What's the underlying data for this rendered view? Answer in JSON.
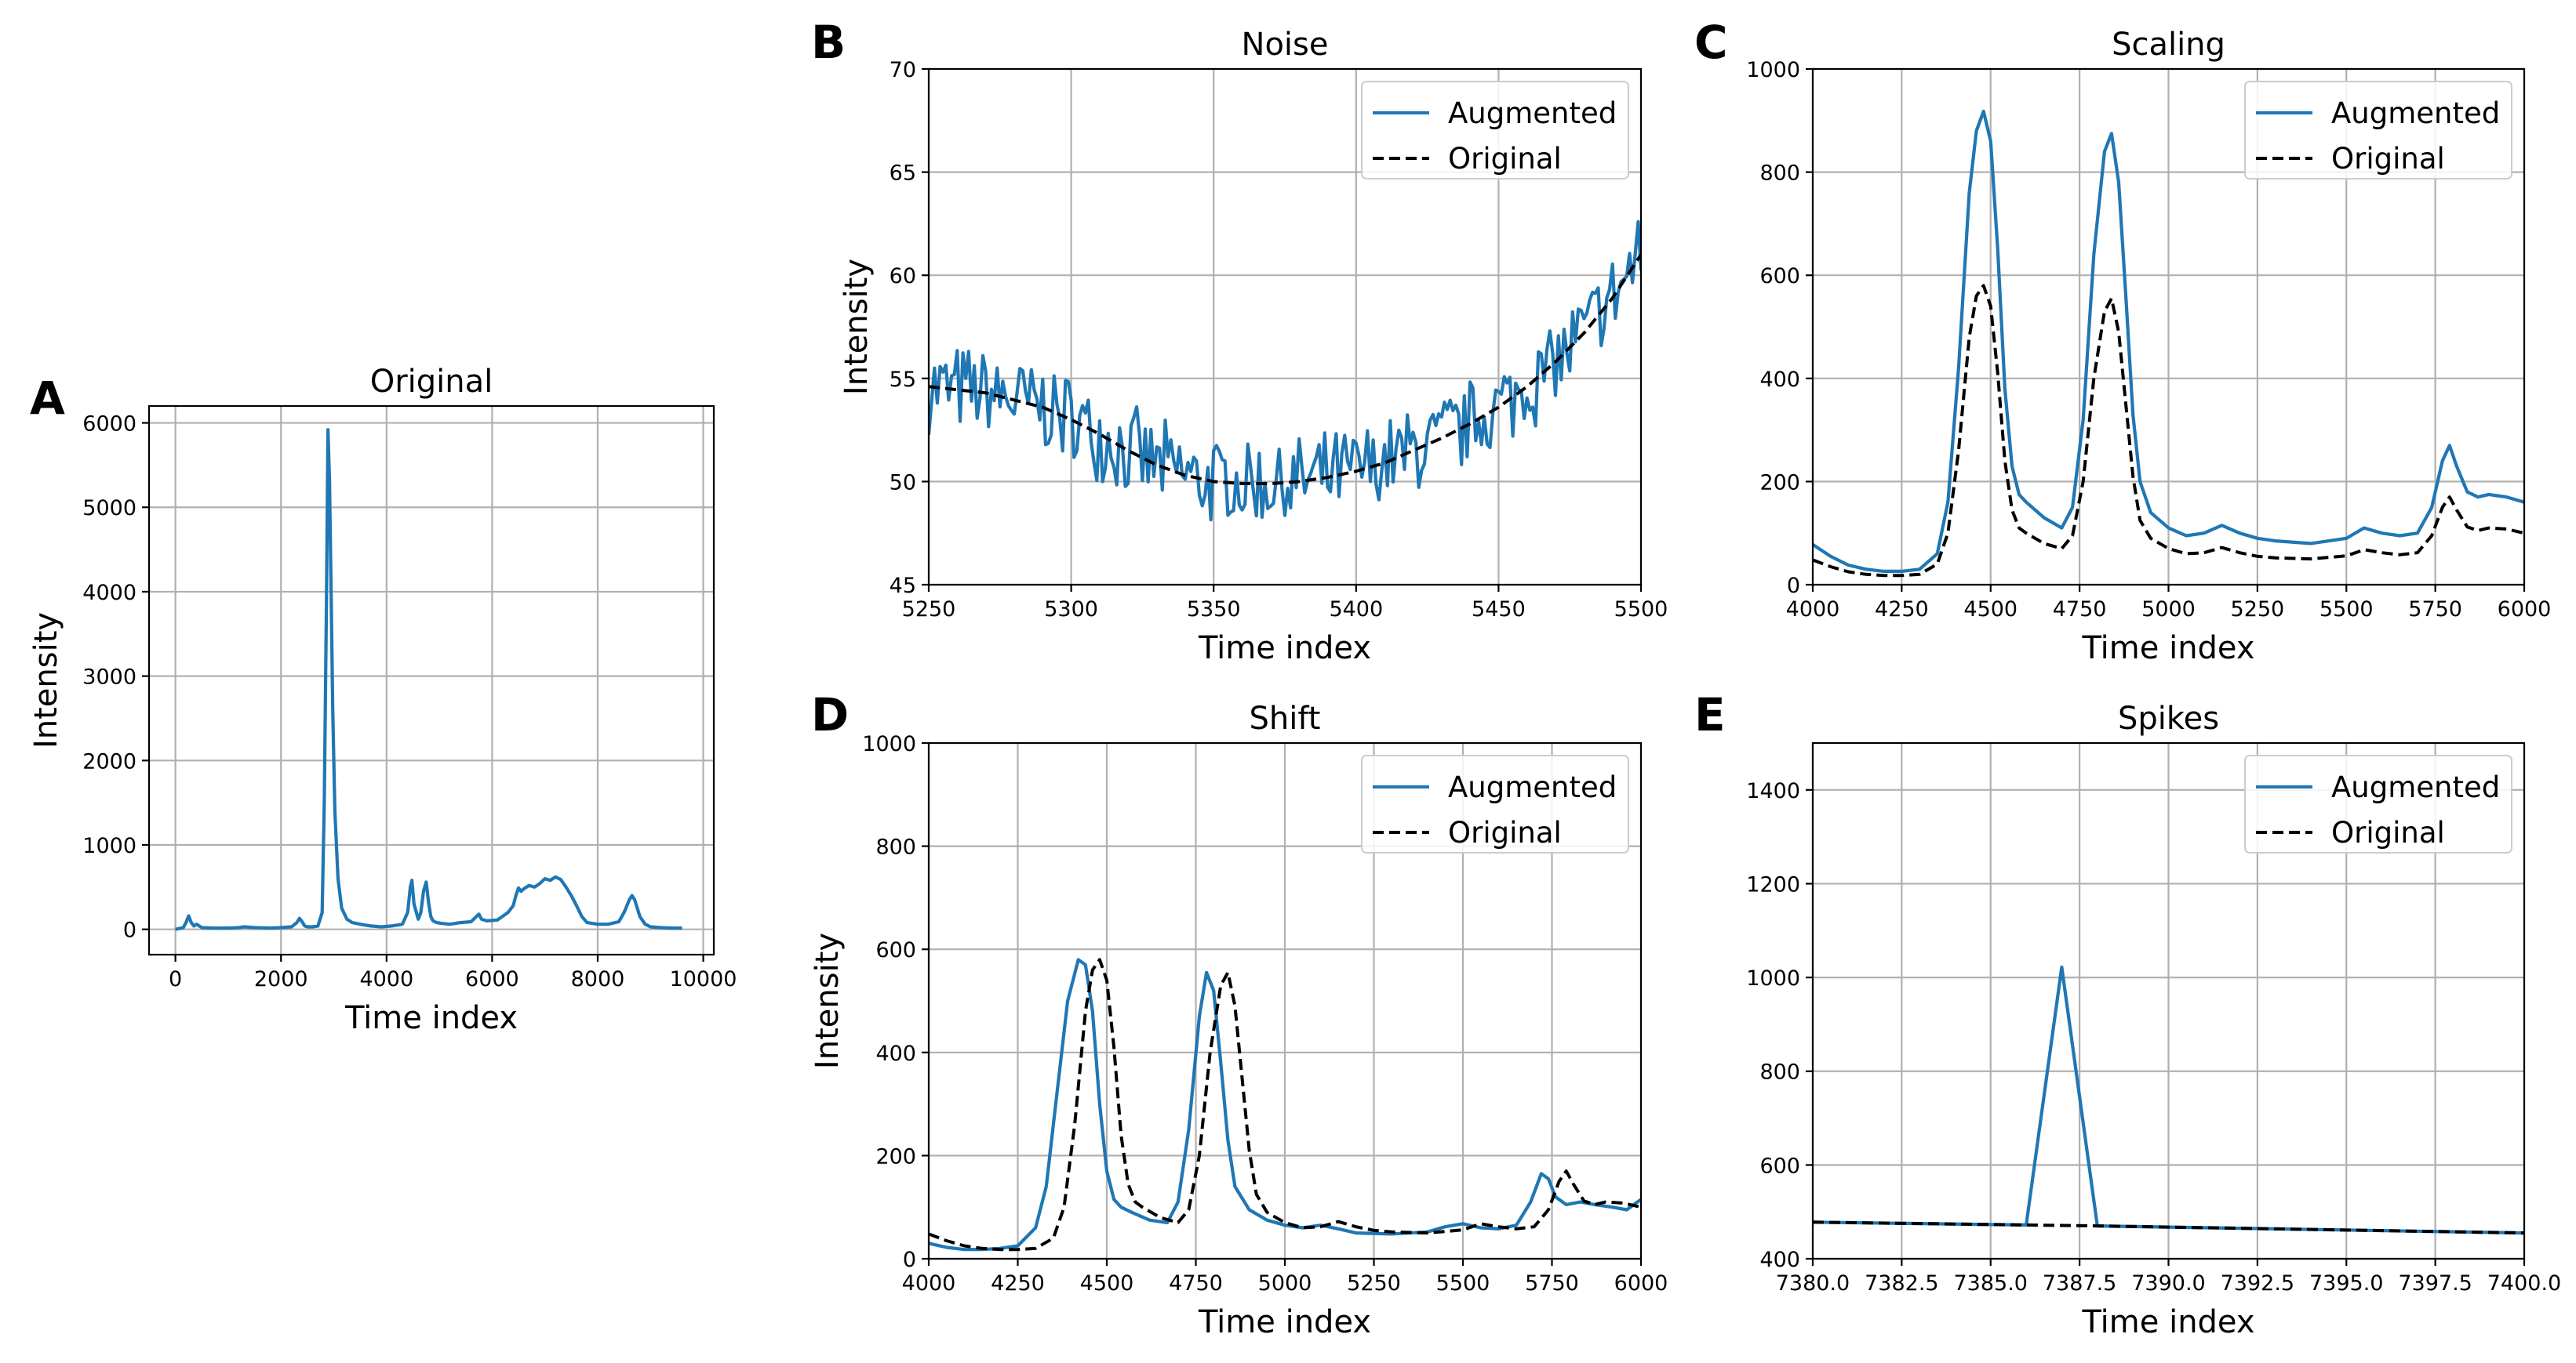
{
  "colors": {
    "augmented": "#1f77b4",
    "original": "#000000",
    "grid": "#b0b0b0"
  },
  "chart_data": [
    {
      "panel": "A",
      "type": "line",
      "title": "Original",
      "xlabel": "Time index",
      "ylabel": "Intensity",
      "xlim": [
        -500,
        10200
      ],
      "ylim": [
        -300,
        6200
      ],
      "xticks": [
        0,
        2000,
        4000,
        6000,
        8000,
        10000
      ],
      "yticks": [
        0,
        1000,
        2000,
        3000,
        4000,
        5000,
        6000
      ],
      "grid": true,
      "series": [
        {
          "style": "solid",
          "color": "#1f77b4",
          "x": [
            0,
            150,
            200,
            250,
            300,
            350,
            400,
            500,
            700,
            1000,
            1200,
            1300,
            1500,
            1800,
            2000,
            2200,
            2300,
            2350,
            2400,
            2450,
            2500,
            2600,
            2700,
            2780,
            2820,
            2860,
            2890,
            2920,
            2950,
            2980,
            3020,
            3080,
            3150,
            3250,
            3350,
            3500,
            3700,
            3900,
            4100,
            4300,
            4400,
            4450,
            4480,
            4520,
            4600,
            4650,
            4700,
            4750,
            4800,
            4840,
            4880,
            4950,
            5050,
            5200,
            5400,
            5600,
            5700,
            5750,
            5800,
            5900,
            6100,
            6300,
            6400,
            6450,
            6500,
            6550,
            6600,
            6700,
            6800,
            6900,
            7000,
            7100,
            7200,
            7300,
            7400,
            7500,
            7600,
            7700,
            7800,
            8000,
            8200,
            8400,
            8500,
            8600,
            8650,
            8700,
            8800,
            8900,
            9000,
            9200,
            9400,
            9600
          ],
          "y": [
            0,
            20,
            80,
            160,
            80,
            40,
            60,
            20,
            15,
            15,
            20,
            30,
            20,
            15,
            20,
            30,
            80,
            130,
            90,
            40,
            30,
            30,
            40,
            200,
            1500,
            3800,
            5920,
            5300,
            4000,
            2600,
            1400,
            600,
            250,
            120,
            80,
            60,
            40,
            30,
            40,
            60,
            200,
            500,
            580,
            300,
            120,
            200,
            450,
            560,
            300,
            150,
            100,
            80,
            70,
            60,
            80,
            90,
            150,
            180,
            120,
            100,
            110,
            200,
            280,
            400,
            490,
            450,
            480,
            520,
            500,
            540,
            600,
            580,
            620,
            590,
            500,
            400,
            280,
            150,
            80,
            60,
            60,
            90,
            200,
            350,
            400,
            350,
            150,
            60,
            30,
            20,
            15,
            15
          ]
        }
      ]
    },
    {
      "panel": "B",
      "type": "line",
      "title": "Noise",
      "xlabel": "Time index",
      "ylabel": "Intensity",
      "xlim": [
        5250,
        5500
      ],
      "ylim": [
        45,
        70
      ],
      "xticks": [
        5250,
        5300,
        5350,
        5400,
        5450,
        5500
      ],
      "yticks": [
        45,
        50,
        55,
        60,
        65,
        70
      ],
      "grid": true,
      "legend": {
        "position": "top-right",
        "entries": [
          "Augmented",
          "Original"
        ]
      },
      "series": [
        {
          "name": "Augmented",
          "style": "solid",
          "color": "#1f77b4",
          "values_note_len": 251
        },
        {
          "name": "Original",
          "style": "dashed",
          "color": "#000000",
          "x": [
            5250,
            5270,
            5290,
            5300,
            5310,
            5320,
            5330,
            5340,
            5350,
            5360,
            5370,
            5380,
            5390,
            5400,
            5410,
            5420,
            5430,
            5440,
            5450,
            5460,
            5470,
            5480,
            5490,
            5500
          ],
          "y": [
            54.6,
            54.3,
            53.6,
            53.0,
            52.3,
            51.5,
            50.8,
            50.3,
            50.0,
            49.9,
            49.9,
            50.0,
            50.2,
            50.5,
            50.9,
            51.5,
            52.1,
            52.8,
            53.6,
            54.6,
            55.8,
            57.2,
            58.9,
            61.0
          ]
        }
      ]
    },
    {
      "panel": "C",
      "type": "line",
      "title": "Scaling",
      "xlabel": "Time index",
      "ylabel": "",
      "xlim": [
        4000,
        6000
      ],
      "ylim": [
        0,
        1000
      ],
      "xticks": [
        4000,
        4250,
        4500,
        4750,
        5000,
        5250,
        5500,
        5750,
        6000
      ],
      "yticks": [
        0,
        200,
        400,
        600,
        800,
        1000
      ],
      "grid": true,
      "legend": {
        "position": "top-right",
        "entries": [
          "Augmented",
          "Original"
        ]
      },
      "series": [
        {
          "name": "Augmented",
          "style": "solid",
          "color": "#1f77b4",
          "x": [
            4000,
            4050,
            4100,
            4150,
            4200,
            4250,
            4300,
            4350,
            4380,
            4410,
            4440,
            4460,
            4480,
            4500,
            4520,
            4540,
            4560,
            4580,
            4600,
            4650,
            4700,
            4730,
            4760,
            4790,
            4820,
            4840,
            4860,
            4880,
            4900,
            4920,
            4950,
            5000,
            5050,
            5100,
            5150,
            5200,
            5250,
            5300,
            5400,
            5500,
            5550,
            5600,
            5650,
            5700,
            5740,
            5770,
            5790,
            5810,
            5840,
            5870,
            5900,
            5950,
            6000
          ],
          "y": [
            78,
            55,
            38,
            30,
            26,
            26,
            30,
            60,
            160,
            420,
            760,
            880,
            918,
            860,
            650,
            380,
            230,
            175,
            160,
            130,
            110,
            150,
            320,
            640,
            840,
            875,
            780,
            560,
            330,
            200,
            140,
            110,
            95,
            100,
            115,
            100,
            90,
            85,
            80,
            90,
            110,
            100,
            95,
            100,
            150,
            240,
            270,
            230,
            180,
            170,
            175,
            170,
            160
          ]
        },
        {
          "name": "Original",
          "style": "dashed",
          "color": "#000000",
          "x": [
            4000,
            4050,
            4100,
            4150,
            4200,
            4250,
            4300,
            4350,
            4380,
            4410,
            4440,
            4460,
            4480,
            4500,
            4520,
            4540,
            4560,
            4580,
            4600,
            4650,
            4700,
            4730,
            4760,
            4790,
            4820,
            4840,
            4860,
            4880,
            4900,
            4920,
            4950,
            5000,
            5050,
            5100,
            5150,
            5200,
            5250,
            5300,
            5400,
            5500,
            5550,
            5600,
            5650,
            5700,
            5740,
            5770,
            5790,
            5810,
            5840,
            5870,
            5900,
            5950,
            6000
          ],
          "y": [
            48,
            35,
            25,
            20,
            18,
            18,
            20,
            40,
            100,
            260,
            480,
            560,
            580,
            540,
            410,
            240,
            145,
            110,
            100,
            80,
            70,
            95,
            200,
            400,
            530,
            555,
            490,
            350,
            210,
            125,
            90,
            70,
            60,
            62,
            72,
            62,
            55,
            52,
            50,
            56,
            68,
            62,
            58,
            62,
            95,
            150,
            170,
            145,
            112,
            105,
            110,
            108,
            100
          ]
        }
      ]
    },
    {
      "panel": "D",
      "type": "line",
      "title": "Shift",
      "xlabel": "Time index",
      "ylabel": "Intensity",
      "xlim": [
        4000,
        6000
      ],
      "ylim": [
        0,
        1000
      ],
      "xticks": [
        4000,
        4250,
        4500,
        4750,
        5000,
        5250,
        5500,
        5750,
        6000
      ],
      "yticks": [
        0,
        200,
        400,
        600,
        800,
        1000
      ],
      "grid": true,
      "legend": {
        "position": "top-right",
        "entries": [
          "Augmented",
          "Original"
        ]
      },
      "series": [
        {
          "name": "Augmented",
          "style": "solid",
          "color": "#1f77b4",
          "x": [
            4000,
            4050,
            4100,
            4150,
            4200,
            4250,
            4300,
            4330,
            4360,
            4390,
            4420,
            4440,
            4460,
            4480,
            4500,
            4520,
            4540,
            4570,
            4620,
            4670,
            4700,
            4730,
            4760,
            4780,
            4800,
            4820,
            4840,
            4860,
            4900,
            4950,
            5000,
            5050,
            5100,
            5150,
            5200,
            5300,
            5400,
            5450,
            5500,
            5550,
            5600,
            5650,
            5690,
            5720,
            5740,
            5760,
            5790,
            5830,
            5870,
            5920,
            5960,
            6000
          ],
          "y": [
            30,
            22,
            18,
            18,
            20,
            25,
            60,
            140,
            320,
            500,
            580,
            570,
            480,
            300,
            170,
            115,
            100,
            90,
            75,
            70,
            110,
            250,
            470,
            555,
            520,
            380,
            230,
            140,
            95,
            75,
            65,
            60,
            65,
            58,
            50,
            48,
            52,
            62,
            68,
            60,
            58,
            65,
            110,
            165,
            155,
            120,
            105,
            110,
            105,
            100,
            95,
            115
          ]
        },
        {
          "name": "Original",
          "style": "dashed",
          "color": "#000000",
          "x": [
            4000,
            4050,
            4100,
            4150,
            4200,
            4250,
            4300,
            4350,
            4380,
            4410,
            4440,
            4460,
            4480,
            4500,
            4520,
            4540,
            4560,
            4580,
            4600,
            4650,
            4700,
            4730,
            4760,
            4790,
            4820,
            4840,
            4860,
            4880,
            4900,
            4920,
            4950,
            5000,
            5050,
            5100,
            5150,
            5200,
            5250,
            5300,
            5400,
            5500,
            5550,
            5600,
            5650,
            5700,
            5740,
            5770,
            5790,
            5810,
            5840,
            5870,
            5900,
            5950,
            6000
          ],
          "y": [
            48,
            35,
            25,
            20,
            18,
            18,
            20,
            40,
            100,
            260,
            480,
            560,
            580,
            540,
            410,
            240,
            145,
            110,
            100,
            80,
            70,
            95,
            200,
            400,
            530,
            555,
            490,
            350,
            210,
            125,
            90,
            70,
            60,
            62,
            72,
            62,
            55,
            52,
            50,
            56,
            68,
            62,
            58,
            62,
            95,
            150,
            170,
            145,
            112,
            105,
            110,
            108,
            100
          ]
        }
      ]
    },
    {
      "panel": "E",
      "type": "line",
      "title": "Spikes",
      "xlabel": "Time index",
      "ylabel": "",
      "xlim": [
        7380,
        7400
      ],
      "ylim": [
        400,
        1500
      ],
      "xticks": [
        7380.0,
        7382.5,
        7385.0,
        7387.5,
        7390.0,
        7392.5,
        7395.0,
        7397.5,
        7400.0
      ],
      "yticks": [
        400,
        600,
        800,
        1000,
        1200,
        1400
      ],
      "grid": true,
      "legend": {
        "position": "top-right",
        "entries": [
          "Augmented",
          "Original"
        ]
      },
      "series": [
        {
          "name": "Augmented",
          "style": "solid",
          "color": "#1f77b4",
          "x": [
            7380,
            7386,
            7387,
            7388,
            7400
          ],
          "y": [
            478,
            472,
            1022,
            470,
            455
          ]
        },
        {
          "name": "Original",
          "style": "dashed",
          "color": "#000000",
          "x": [
            7380,
            7386,
            7387,
            7388,
            7400
          ],
          "y": [
            478,
            472,
            471,
            470,
            455
          ]
        }
      ]
    }
  ],
  "panel_letters": [
    "A",
    "B",
    "C",
    "D",
    "E"
  ]
}
